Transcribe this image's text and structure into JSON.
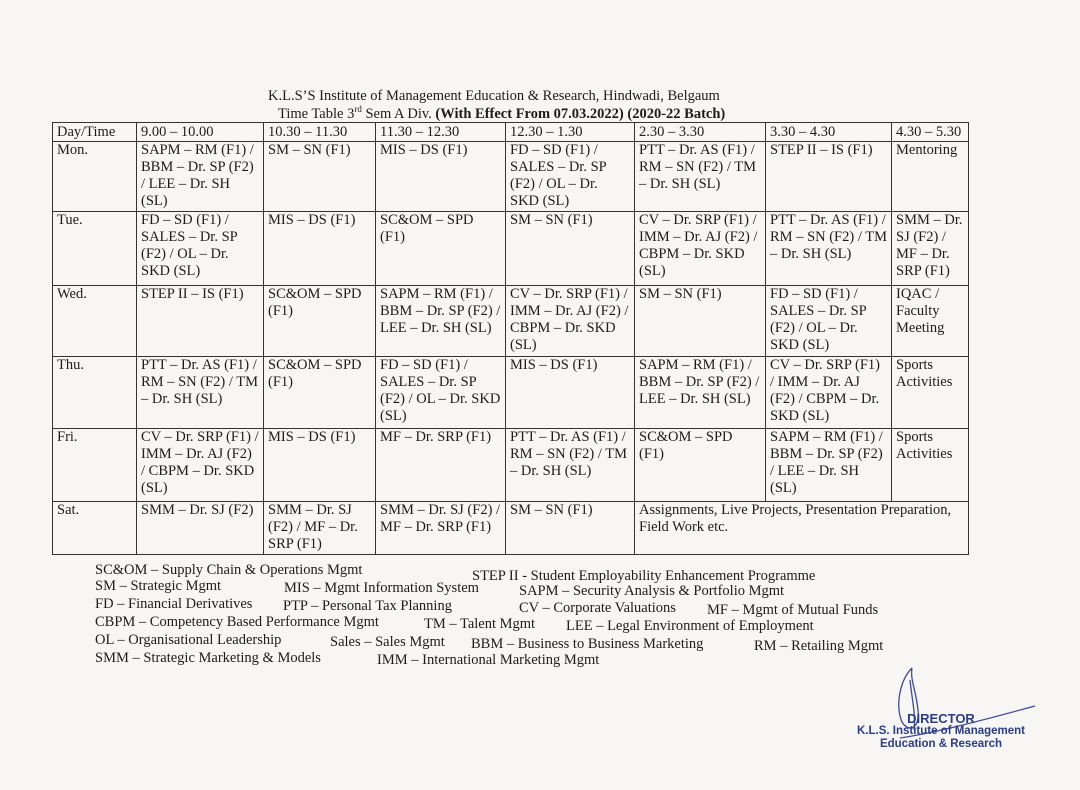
{
  "header": {
    "line1": "K.L.S’S Institute of Management Education & Research, Hindwadi, Belgaum",
    "line2_prefix": "Time Table 3",
    "line2_sup": "rd",
    "line2_mid": " Sem A Div. ",
    "line2_bold": "(With Effect From 07.03.2022) (2020-22 Batch)"
  },
  "table": {
    "headers": [
      "Day/Time",
      "9.00 – 10.00",
      "10.30 – 11.30",
      "11.30 – 12.30",
      "12.30 – 1.30",
      "2.30 – 3.30",
      "3.30 – 4.30",
      "4.30 – 5.30"
    ],
    "rows": [
      {
        "day": "Mon.",
        "cells": [
          "SAPM – RM (F1) / BBM – Dr. SP (F2) / LEE – Dr. SH (SL)",
          "SM – SN (F1)",
          "MIS – DS (F1)",
          "FD – SD (F1) / SALES – Dr. SP (F2) / OL – Dr. SKD (SL)",
          "PTT – Dr. AS (F1) / RM – SN (F2) / TM – Dr. SH (SL)",
          "STEP II – IS (F1)",
          "Mentoring"
        ]
      },
      {
        "day": "Tue.",
        "cells": [
          "FD – SD (F1) / SALES – Dr. SP (F2) / OL – Dr. SKD (SL)",
          "MIS – DS (F1)",
          "SC&OM – SPD (F1)",
          "SM – SN (F1)",
          "CV – Dr. SRP (F1) / IMM – Dr. AJ (F2) / CBPM – Dr. SKD (SL)",
          "PTT – Dr. AS (F1) / RM – SN (F2) / TM – Dr. SH (SL)",
          "SMM – Dr. SJ (F2) / MF – Dr. SRP (F1)"
        ]
      },
      {
        "day": "Wed.",
        "cells": [
          "STEP II – IS (F1)",
          "SC&OM – SPD (F1)",
          "SAPM – RM (F1) / BBM – Dr. SP (F2) / LEE – Dr. SH (SL)",
          "CV – Dr. SRP (F1) / IMM – Dr. AJ (F2) / CBPM – Dr. SKD (SL)",
          "SM – SN (F1)",
          "FD – SD (F1) / SALES – Dr. SP (F2) / OL – Dr. SKD (SL)",
          "IQAC / Faculty Meeting"
        ]
      },
      {
        "day": "Thu.",
        "cells": [
          "PTT – Dr. AS (F1) / RM – SN (F2) / TM – Dr. SH (SL)",
          "SC&OM – SPD (F1)",
          "FD – SD (F1) / SALES – Dr. SP (F2) / OL – Dr. SKD (SL)",
          "MIS – DS (F1)",
          "SAPM – RM (F1) / BBM – Dr. SP (F2) / LEE – Dr. SH (SL)",
          "CV – Dr. SRP (F1) / IMM – Dr. AJ (F2) / CBPM – Dr. SKD (SL)",
          "Sports Activities"
        ]
      },
      {
        "day": "Fri.",
        "cells": [
          "CV – Dr. SRP (F1) / IMM – Dr. AJ (F2) / CBPM – Dr. SKD (SL)",
          "MIS – DS (F1)",
          "MF – Dr. SRP (F1)",
          "PTT – Dr. AS (F1) / RM – SN (F2) / TM – Dr. SH (SL)",
          "SC&OM – SPD (F1)",
          "SAPM – RM (F1) / BBM – Dr. SP (F2) / LEE – Dr. SH (SL)",
          "Sports Activities"
        ]
      },
      {
        "day": "Sat.",
        "cells": [
          "SMM – Dr. SJ (F2)",
          "SMM – Dr. SJ (F2) / MF – Dr. SRP (F1)",
          "SMM – Dr. SJ (F2) / MF – Dr. SRP (F1)",
          "SM – SN (F1)",
          "Assignments, Live Projects, Presentation Preparation, Field Work etc."
        ]
      }
    ]
  },
  "legend": [
    [
      "SC&OM – Supply Chain & Operations Mgmt",
      "STEP II - Student Employability Enhancement Programme"
    ],
    [
      "SM – Strategic Mgmt",
      "MIS – Mgmt Information System",
      "SAPM – Security Analysis & Portfolio Mgmt"
    ],
    [
      "FD – Financial Derivatives",
      "PTP – Personal Tax Planning",
      "CV – Corporate Valuations",
      "MF – Mgmt of Mutual Funds"
    ],
    [
      "CBPM – Competency Based Performance Mgmt",
      "TM – Talent Mgmt",
      "LEE – Legal Environment of Employment"
    ],
    [
      "OL – Organisational Leadership",
      "Sales – Sales Mgmt",
      "BBM – Business to Business Marketing",
      "RM – Retailing Mgmt"
    ],
    [
      "SMM – Strategic Marketing & Models",
      "IMM – International Marketing Mgmt"
    ]
  ],
  "stamp": {
    "title": "DIRECTOR",
    "line1": "K.L.S. Institute of Management",
    "line2": "Education & Research",
    "color": "#2a3d8a"
  }
}
